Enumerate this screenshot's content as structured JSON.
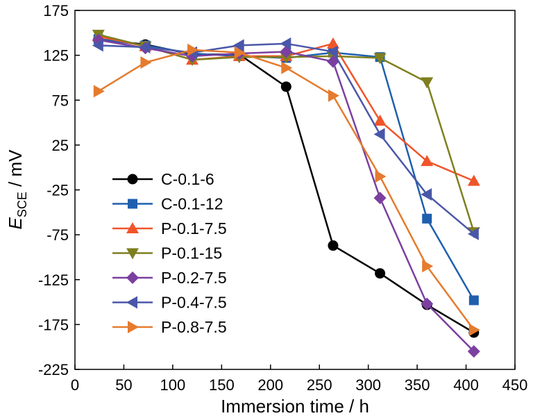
{
  "chart_data": {
    "type": "line",
    "xlabel": "Immersion time / h",
    "ylabel": {
      "main": "E",
      "subscript": "SCE",
      "unit": " / mV"
    },
    "xlim": [
      0,
      450
    ],
    "ylim": [
      -225,
      175
    ],
    "xticks": [
      0,
      50,
      100,
      150,
      200,
      250,
      300,
      350,
      400,
      450
    ],
    "yticks": [
      -225,
      -175,
      -125,
      -75,
      -25,
      25,
      75,
      125,
      175
    ],
    "grid": false,
    "legend_position": "left",
    "series": [
      {
        "name": "C-0.1-6",
        "color": "#000000",
        "marker": "circle",
        "x": [
          24,
          72,
          120,
          168,
          216,
          264,
          312,
          360,
          408
        ],
        "y": [
          143,
          137,
          126,
          126,
          90,
          -87,
          -118,
          -153,
          -184
        ]
      },
      {
        "name": "C-0.1-12",
        "color": "#1f5fad",
        "marker": "square",
        "x": [
          24,
          72,
          120,
          168,
          216,
          264,
          312,
          360,
          408
        ],
        "y": [
          143,
          136,
          127,
          124,
          122,
          128,
          123,
          -57,
          -148
        ]
      },
      {
        "name": "P-0.1-7.5",
        "color": "#f0552a",
        "marker": "triangle-up",
        "x": [
          24,
          72,
          120,
          168,
          216,
          264,
          312,
          360,
          408
        ],
        "y": [
          146,
          135,
          120,
          124,
          124,
          138,
          52,
          7,
          -15
        ]
      },
      {
        "name": "P-0.1-15",
        "color": "#7f7f20",
        "marker": "triangle-down",
        "x": [
          24,
          72,
          120,
          168,
          216,
          264,
          312,
          360,
          408
        ],
        "y": [
          148,
          135,
          120,
          123,
          123,
          124,
          122,
          95,
          -72
        ]
      },
      {
        "name": "P-0.2-7.5",
        "color": "#7b3fa0",
        "marker": "diamond",
        "x": [
          24,
          72,
          120,
          168,
          216,
          264,
          312,
          360,
          408
        ],
        "y": [
          142,
          133,
          124,
          127,
          129,
          118,
          -34,
          -152,
          -205
        ]
      },
      {
        "name": "P-0.4-7.5",
        "color": "#4a57a8",
        "marker": "triangle-left",
        "x": [
          24,
          72,
          120,
          168,
          216,
          264,
          312,
          360,
          408
        ],
        "y": [
          136,
          134,
          128,
          136,
          138,
          129,
          37,
          -30,
          -74
        ]
      },
      {
        "name": "P-0.8-7.5",
        "color": "#e57b2e",
        "marker": "triangle-right",
        "x": [
          24,
          72,
          120,
          168,
          216,
          264,
          312,
          360,
          408
        ],
        "y": [
          85,
          117,
          131,
          128,
          111,
          80,
          -10,
          -110,
          -181
        ]
      }
    ]
  }
}
